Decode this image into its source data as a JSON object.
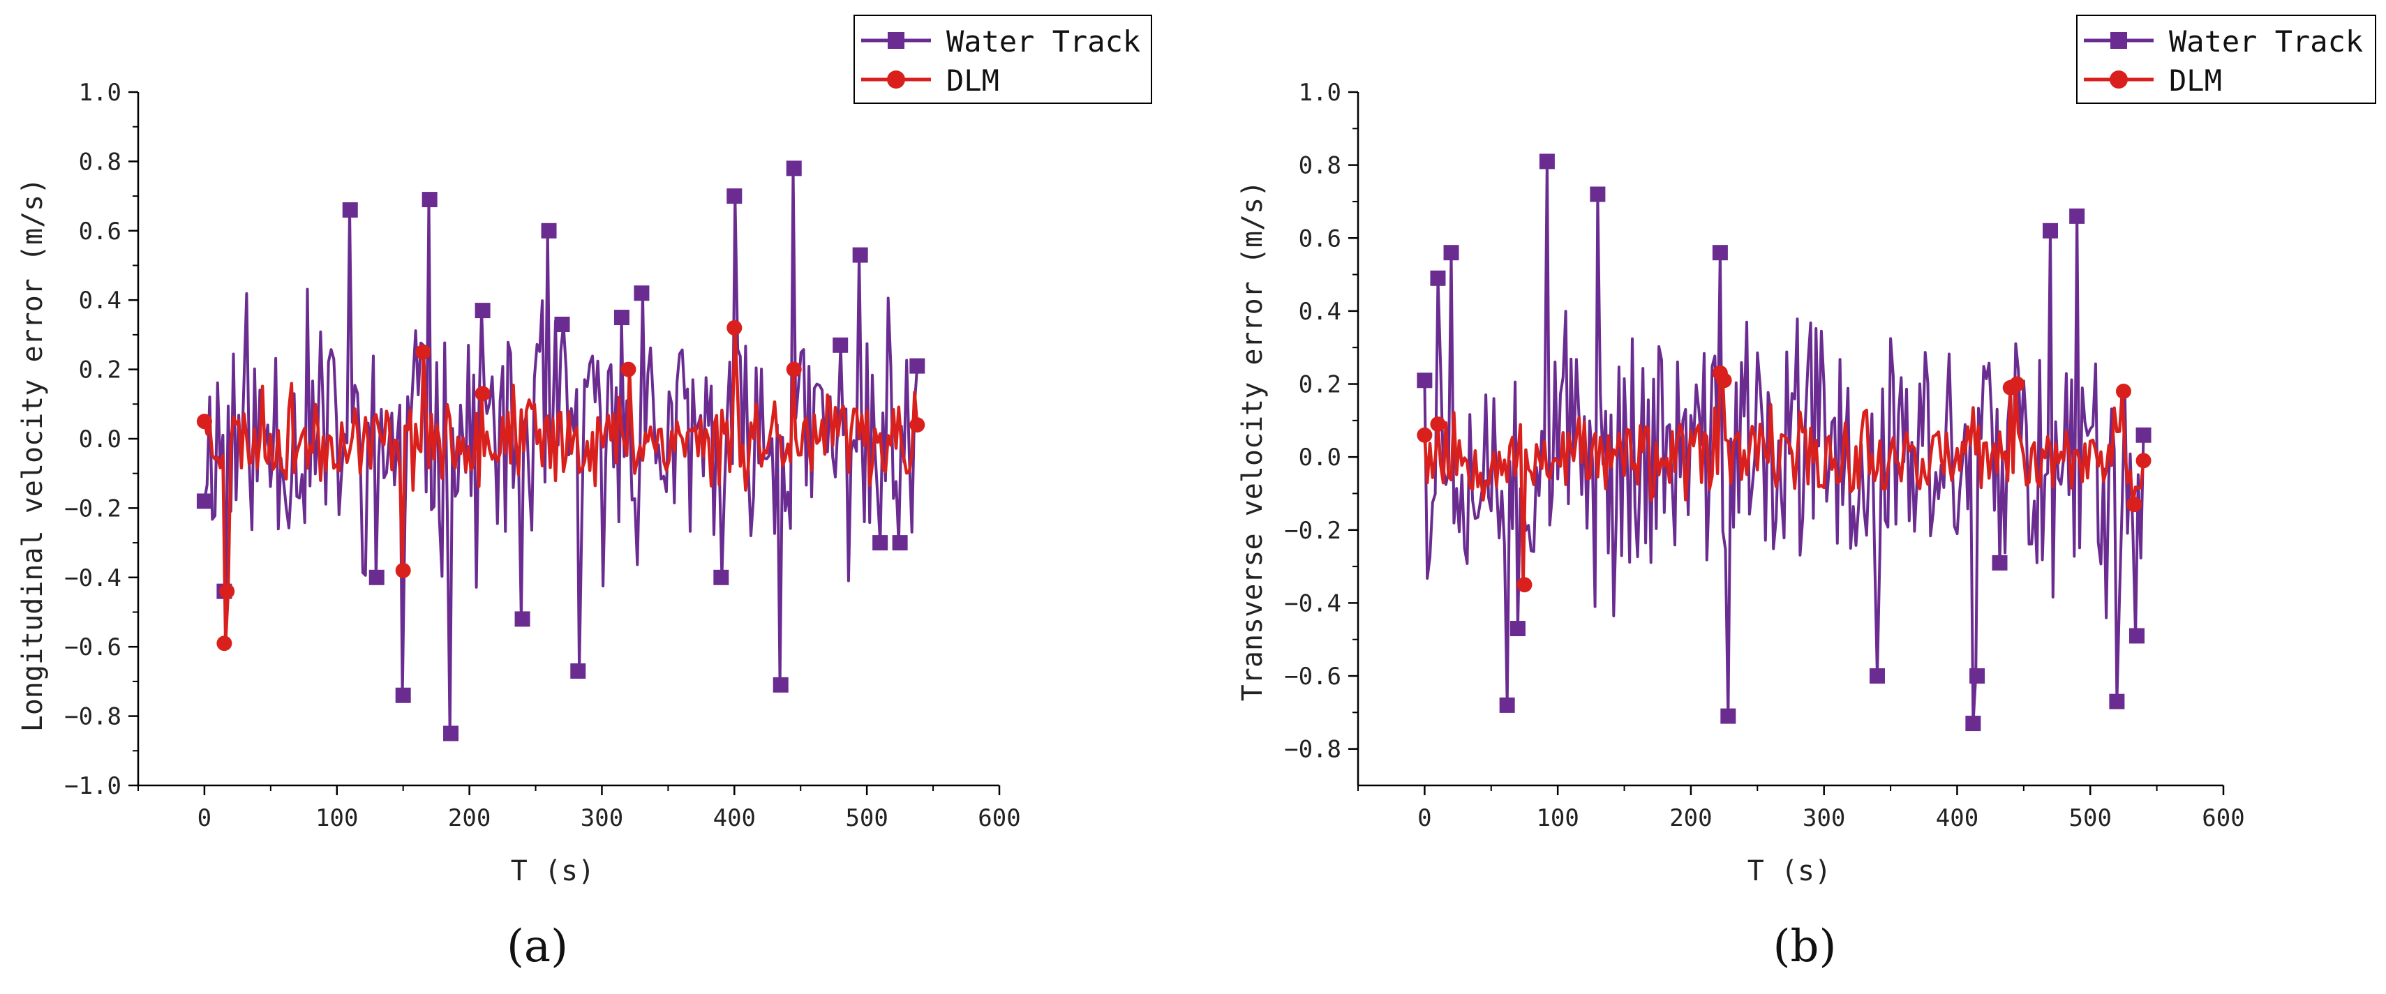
{
  "colors": {
    "water_track": "#6a2c91",
    "dlm": "#d9201c",
    "axis": "#000000"
  },
  "chart_data": [
    {
      "type": "line",
      "panel_label": "(a)",
      "xlabel": "T (s)",
      "ylabel": "Longitudinal velocity error (m/s)",
      "xlim": [
        -50,
        600
      ],
      "ylim": [
        -1.0,
        1.0
      ],
      "xticks": [
        0,
        100,
        200,
        300,
        400,
        500,
        600
      ],
      "yticks": [
        -1.0,
        -0.8,
        -0.6,
        -0.4,
        -0.2,
        0.0,
        0.2,
        0.4,
        0.6,
        0.8,
        1.0
      ],
      "ytick_labels": [
        "−1.0",
        "−0.8",
        "−0.6",
        "−0.4",
        "−0.2",
        "0.0",
        "0.2",
        "0.4",
        "0.6",
        "0.8",
        "1.0"
      ],
      "legend": [
        "Water Track",
        "DLM"
      ],
      "series": [
        {
          "name": "Water Track",
          "x_start": 0,
          "x_end": 538,
          "n": 270,
          "amplitude": 0.28,
          "seed": 11,
          "spikes": [
            [
              0,
              -0.18
            ],
            [
              15,
              -0.44
            ],
            [
              110,
              0.66
            ],
            [
              130,
              -0.4
            ],
            [
              150,
              -0.74
            ],
            [
              170,
              0.69
            ],
            [
              186,
              -0.85
            ],
            [
              210,
              0.37
            ],
            [
              240,
              -0.52
            ],
            [
              260,
              0.6
            ],
            [
              270,
              0.33
            ],
            [
              282,
              -0.67
            ],
            [
              315,
              0.35
            ],
            [
              330,
              0.42
            ],
            [
              390,
              -0.4
            ],
            [
              400,
              0.7
            ],
            [
              435,
              -0.71
            ],
            [
              445,
              0.78
            ],
            [
              480,
              0.27
            ],
            [
              495,
              0.53
            ],
            [
              510,
              -0.3
            ],
            [
              525,
              -0.3
            ],
            [
              538,
              0.21
            ]
          ]
        },
        {
          "name": "DLM",
          "x_start": 0,
          "x_end": 538,
          "n": 270,
          "amplitude": 0.1,
          "seed": 23,
          "spikes": [
            [
              0,
              0.05
            ],
            [
              15,
              -0.59
            ],
            [
              17,
              -0.44
            ],
            [
              165,
              0.25
            ],
            [
              150,
              -0.38
            ],
            [
              210,
              0.13
            ],
            [
              320,
              0.2
            ],
            [
              400,
              0.32
            ],
            [
              445,
              0.2
            ],
            [
              538,
              0.04
            ]
          ]
        }
      ]
    },
    {
      "type": "line",
      "panel_label": "(b)",
      "xlabel": "T (s)",
      "ylabel": "Transverse velocity error (m/s)",
      "xlim": [
        -50,
        600
      ],
      "ylim": [
        -0.9,
        1.0
      ],
      "xticks": [
        0,
        100,
        200,
        300,
        400,
        500,
        600
      ],
      "yticks": [
        -0.8,
        -0.6,
        -0.4,
        -0.2,
        0.0,
        0.2,
        0.4,
        0.6,
        0.8,
        1.0
      ],
      "ytick_labels": [
        "−0.8",
        "−0.6",
        "−0.4",
        "−0.2",
        "0.0",
        "0.2",
        "0.4",
        "0.6",
        "0.8",
        "1.0"
      ],
      "legend": [
        "Water Track",
        "DLM"
      ],
      "series": [
        {
          "name": "Water Track",
          "x_start": 0,
          "x_end": 540,
          "n": 270,
          "amplitude": 0.3,
          "seed": 37,
          "spikes": [
            [
              0,
              0.21
            ],
            [
              10,
              0.49
            ],
            [
              20,
              0.56
            ],
            [
              62,
              -0.68
            ],
            [
              70,
              -0.47
            ],
            [
              92,
              0.81
            ],
            [
              130,
              0.72
            ],
            [
              222,
              0.56
            ],
            [
              228,
              -0.71
            ],
            [
              340,
              -0.6
            ],
            [
              412,
              -0.73
            ],
            [
              415,
              -0.6
            ],
            [
              432,
              -0.29
            ],
            [
              470,
              0.62
            ],
            [
              490,
              0.66
            ],
            [
              520,
              -0.67
            ],
            [
              535,
              -0.49
            ],
            [
              540,
              0.06
            ]
          ]
        },
        {
          "name": "DLM",
          "x_start": 0,
          "x_end": 540,
          "n": 270,
          "amplitude": 0.09,
          "seed": 53,
          "spikes": [
            [
              0,
              0.06
            ],
            [
              10,
              0.09
            ],
            [
              75,
              -0.35
            ],
            [
              222,
              0.23
            ],
            [
              225,
              0.21
            ],
            [
              440,
              0.19
            ],
            [
              445,
              0.2
            ],
            [
              525,
              0.18
            ],
            [
              533,
              -0.13
            ],
            [
              540,
              -0.01
            ]
          ]
        }
      ]
    }
  ]
}
